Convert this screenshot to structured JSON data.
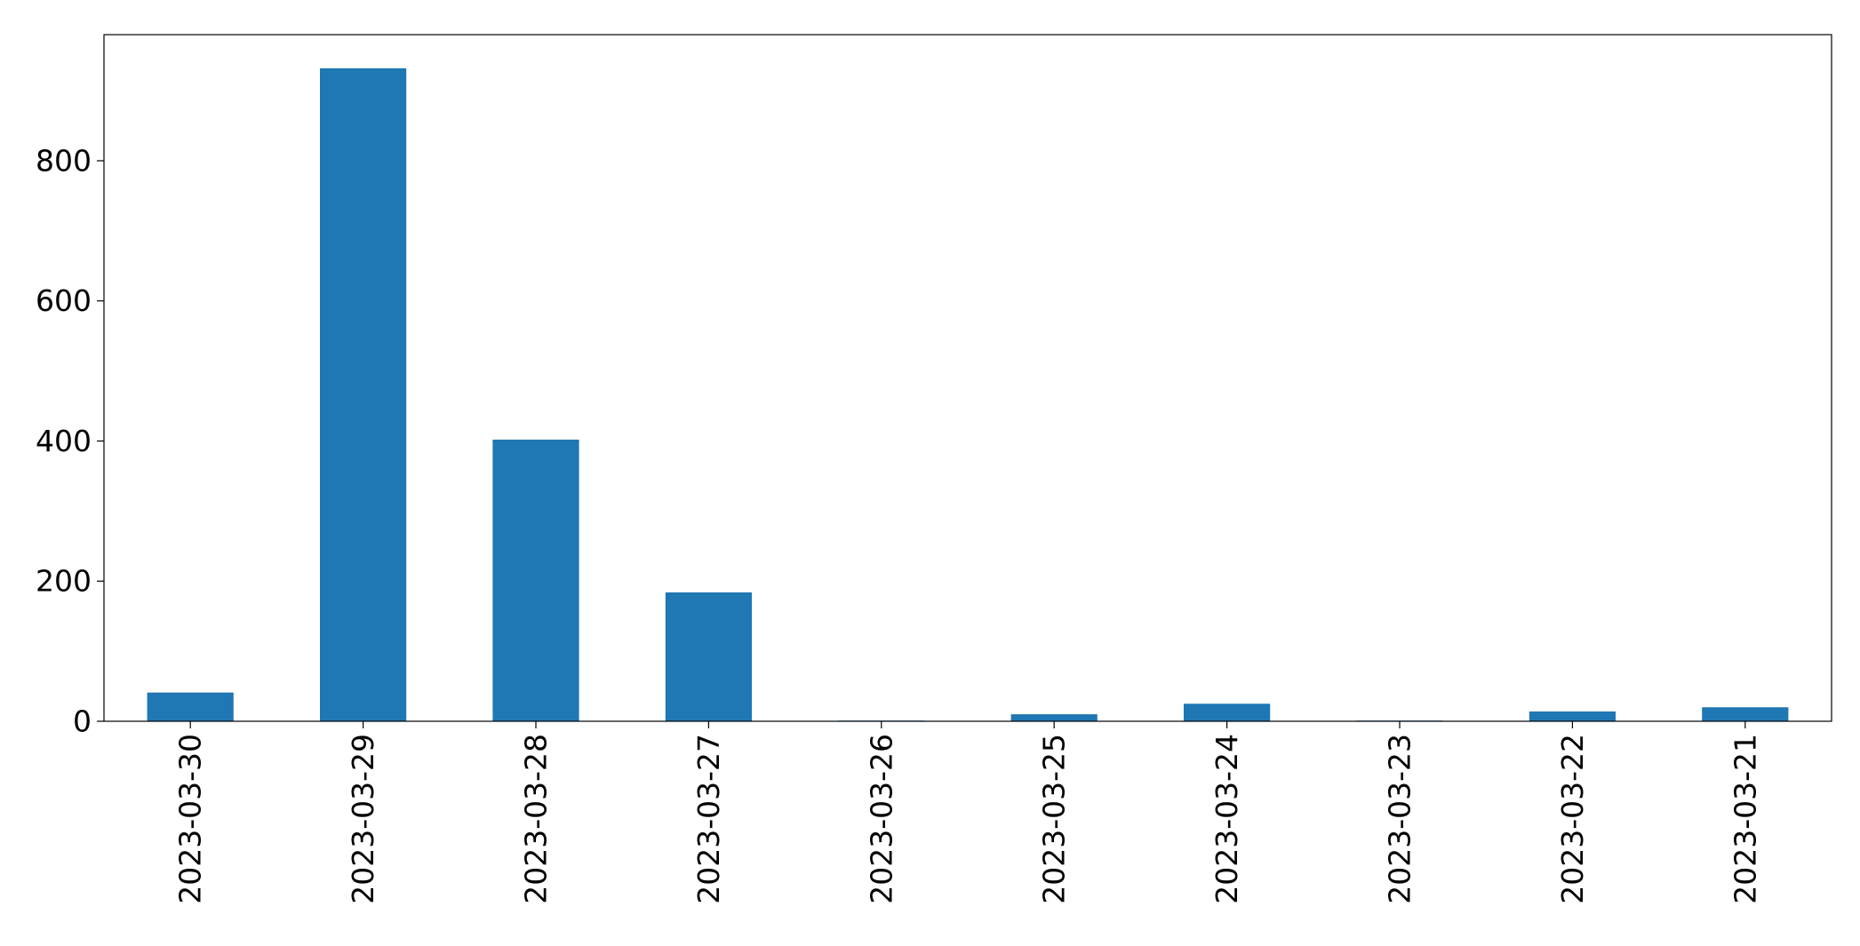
{
  "chart_data": {
    "type": "bar",
    "title": "",
    "xlabel": "",
    "ylabel": "",
    "categories": [
      "2023-03-30",
      "2023-03-29",
      "2023-03-28",
      "2023-03-27",
      "2023-03-26",
      "2023-03-25",
      "2023-03-24",
      "2023-03-23",
      "2023-03-22",
      "2023-03-21"
    ],
    "values": [
      41,
      932,
      402,
      184,
      1,
      10,
      25,
      1,
      14,
      20
    ],
    "ylim": [
      0,
      980
    ],
    "yticks": [
      0,
      200,
      400,
      600,
      800
    ],
    "bar_color": "#1f77b4",
    "grid": false,
    "legend": "none",
    "x_tick_rotation": "vertical"
  }
}
